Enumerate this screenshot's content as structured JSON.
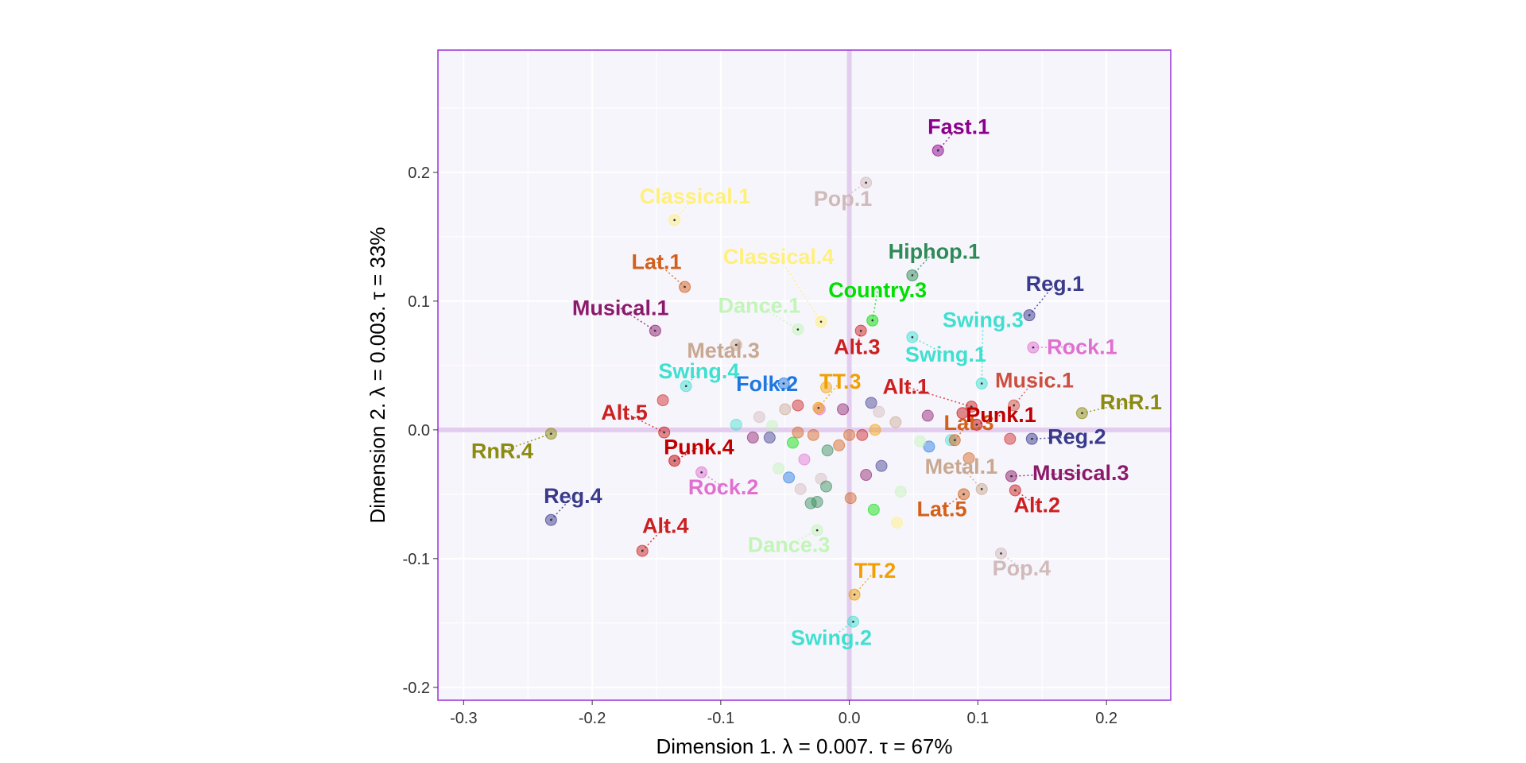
{
  "chart_data": {
    "type": "scatter",
    "title": "",
    "xlabel": "Dimension 1.   λ = 0.007.  τ = 67%",
    "ylabel": "Dimension 2.   λ = 0.003.  τ = 33%",
    "xlim": [
      -0.32,
      0.25
    ],
    "ylim": [
      -0.21,
      0.295
    ],
    "xticks": [
      -0.3,
      -0.2,
      -0.1,
      0.0,
      0.1,
      0.2
    ],
    "xtick_labels": [
      "-0.3",
      "-0.2",
      "-0.1",
      "0.0",
      "0.1",
      "0.2"
    ],
    "yticks": [
      -0.2,
      -0.1,
      0.0,
      0.1,
      0.2
    ],
    "ytick_labels": [
      "-0.2",
      "-0.1",
      "0.0",
      "0.1",
      "0.2"
    ],
    "grid": true,
    "colors": {
      "panel_bg": "#f7f5fc",
      "panel_border": "#9b30d9",
      "zero_lines": "#e3cdee",
      "Alt": "#cc2020",
      "Punk": "#c00000",
      "Reg": "#3a3a8c",
      "RnR": "#8b8b10",
      "Rock": "#e070d0",
      "Musical": "#8b1a6b",
      "Lat": "#d2601a",
      "Classical": "#fff07a",
      "Pop": "#d0baba",
      "Dance": "#c2f5b8",
      "Metal": "#c8a890",
      "Swing": "#40e0d0",
      "TT": "#f0a000",
      "Folk": "#1e78e0",
      "Country": "#00e000",
      "Hiphop": "#2e8b57",
      "Fast": "#8b008b",
      "Music": "#cc5040"
    },
    "points": [
      {
        "name": "Fast.1",
        "x": 0.069,
        "y": 0.217,
        "lx": 0.085,
        "ly": 0.23,
        "group": "Fast"
      },
      {
        "name": "Pop.1",
        "x": 0.013,
        "y": 0.192,
        "lx": -0.005,
        "ly": 0.174,
        "group": "Pop"
      },
      {
        "name": "Classical.1",
        "x": -0.136,
        "y": 0.163,
        "lx": -0.12,
        "ly": 0.176,
        "group": "Classical"
      },
      {
        "name": "Lat.1",
        "x": -0.128,
        "y": 0.111,
        "lx": -0.15,
        "ly": 0.125,
        "group": "Lat"
      },
      {
        "name": "Classical.4",
        "x": -0.022,
        "y": 0.084,
        "lx": -0.055,
        "ly": 0.129,
        "group": "Classical"
      },
      {
        "name": "Hiphop.1",
        "x": 0.049,
        "y": 0.12,
        "lx": 0.066,
        "ly": 0.133,
        "group": "Hiphop"
      },
      {
        "name": "Reg.1",
        "x": 0.14,
        "y": 0.089,
        "lx": 0.16,
        "ly": 0.108,
        "group": "Reg"
      },
      {
        "name": "Country.3",
        "x": 0.018,
        "y": 0.085,
        "lx": 0.022,
        "ly": 0.103,
        "group": "Country"
      },
      {
        "name": "Musical.1",
        "x": -0.151,
        "y": 0.077,
        "lx": -0.178,
        "ly": 0.089,
        "group": "Musical"
      },
      {
        "name": "Dance.1",
        "x": -0.04,
        "y": 0.078,
        "lx": -0.07,
        "ly": 0.091,
        "group": "Dance"
      },
      {
        "name": "Swing.3",
        "x": 0.103,
        "y": 0.036,
        "lx": 0.104,
        "ly": 0.08,
        "group": "Swing"
      },
      {
        "name": "Rock.1",
        "x": 0.143,
        "y": 0.064,
        "lx": 0.181,
        "ly": 0.059,
        "group": "Rock"
      },
      {
        "name": "Metal.3",
        "x": -0.088,
        "y": 0.066,
        "lx": -0.098,
        "ly": 0.056,
        "group": "Metal"
      },
      {
        "name": "Alt.3",
        "x": 0.009,
        "y": 0.077,
        "lx": 0.006,
        "ly": 0.059,
        "group": "Alt"
      },
      {
        "name": "Swing.1",
        "x": 0.049,
        "y": 0.072,
        "lx": 0.075,
        "ly": 0.053,
        "group": "Swing"
      },
      {
        "name": "Swing.4",
        "x": -0.127,
        "y": 0.034,
        "lx": -0.117,
        "ly": 0.04,
        "group": "Swing"
      },
      {
        "name": "Music.1",
        "x": 0.128,
        "y": 0.019,
        "lx": 0.144,
        "ly": 0.033,
        "group": "Music"
      },
      {
        "name": "TT.3",
        "x": -0.024,
        "y": 0.017,
        "lx": -0.007,
        "ly": 0.032,
        "group": "TT"
      },
      {
        "name": "Folk.2",
        "x": -0.051,
        "y": 0.036,
        "lx": -0.064,
        "ly": 0.03,
        "group": "Folk"
      },
      {
        "name": "Alt.1",
        "x": 0.095,
        "y": 0.018,
        "lx": 0.044,
        "ly": 0.028,
        "group": "Alt"
      },
      {
        "name": "RnR.1",
        "x": 0.181,
        "y": 0.013,
        "lx": 0.219,
        "ly": 0.016,
        "group": "RnR"
      },
      {
        "name": "Alt.5",
        "x": -0.144,
        "y": -0.002,
        "lx": -0.175,
        "ly": 0.008,
        "group": "Alt"
      },
      {
        "name": "Lat.3",
        "x": 0.082,
        "y": -0.008,
        "lx": 0.093,
        "ly": 0.0,
        "group": "Lat"
      },
      {
        "name": "Punk.1",
        "x": 0.099,
        "y": 0.004,
        "lx": 0.118,
        "ly": 0.006,
        "group": "Punk"
      },
      {
        "name": "Reg.2",
        "x": 0.142,
        "y": -0.007,
        "lx": 0.177,
        "ly": -0.011,
        "group": "Reg"
      },
      {
        "name": "RnR.4",
        "x": -0.232,
        "y": -0.003,
        "lx": -0.27,
        "ly": -0.022,
        "group": "RnR"
      },
      {
        "name": "Punk.4",
        "x": -0.136,
        "y": -0.024,
        "lx": -0.117,
        "ly": -0.019,
        "group": "Punk"
      },
      {
        "name": "Metal.1",
        "x": 0.103,
        "y": -0.046,
        "lx": 0.087,
        "ly": -0.034,
        "group": "Metal"
      },
      {
        "name": "Musical.3",
        "x": 0.126,
        "y": -0.036,
        "lx": 0.18,
        "ly": -0.039,
        "group": "Musical"
      },
      {
        "name": "Rock.2",
        "x": -0.115,
        "y": -0.033,
        "lx": -0.098,
        "ly": -0.05,
        "group": "Rock"
      },
      {
        "name": "Reg.4",
        "x": -0.232,
        "y": -0.07,
        "lx": -0.215,
        "ly": -0.057,
        "group": "Reg"
      },
      {
        "name": "Alt.2",
        "x": 0.129,
        "y": -0.047,
        "lx": 0.146,
        "ly": -0.064,
        "group": "Alt"
      },
      {
        "name": "Lat.5",
        "x": 0.089,
        "y": -0.05,
        "lx": 0.072,
        "ly": -0.067,
        "group": "Lat"
      },
      {
        "name": "Alt.4",
        "x": -0.161,
        "y": -0.094,
        "lx": -0.143,
        "ly": -0.08,
        "group": "Alt"
      },
      {
        "name": "Dance.3",
        "x": -0.025,
        "y": -0.078,
        "lx": -0.047,
        "ly": -0.095,
        "group": "Dance"
      },
      {
        "name": "Pop.4",
        "x": 0.118,
        "y": -0.096,
        "lx": 0.134,
        "ly": -0.113,
        "group": "Pop"
      },
      {
        "name": "TT.2",
        "x": 0.004,
        "y": -0.128,
        "lx": 0.02,
        "ly": -0.115,
        "group": "TT"
      },
      {
        "name": "Swing.2",
        "x": 0.003,
        "y": -0.149,
        "lx": -0.014,
        "ly": -0.167,
        "group": "Swing"
      }
    ],
    "unlabeled_points": [
      [
        -0.145,
        0.023,
        "Alt"
      ],
      [
        -0.088,
        0.004,
        "Swing"
      ],
      [
        -0.07,
        0.01,
        "Pop"
      ],
      [
        -0.06,
        0.003,
        "Dance"
      ],
      [
        -0.05,
        0.016,
        "Metal"
      ],
      [
        -0.04,
        0.019,
        "Alt"
      ],
      [
        -0.023,
        0.016,
        "Rock"
      ],
      [
        -0.005,
        0.016,
        "Musical"
      ],
      [
        0.017,
        0.021,
        "Reg"
      ],
      [
        0.023,
        0.014,
        "Pop"
      ],
      [
        0.061,
        0.011,
        "Musical"
      ],
      [
        0.088,
        0.013,
        "Punk"
      ],
      [
        -0.075,
        -0.006,
        "Musical"
      ],
      [
        -0.062,
        -0.006,
        "Reg"
      ],
      [
        -0.028,
        -0.004,
        "Lat"
      ],
      [
        0.01,
        -0.004,
        "Alt"
      ],
      [
        0.02,
        0.0,
        "TT"
      ],
      [
        0.036,
        0.006,
        "Metal"
      ],
      [
        0.062,
        -0.013,
        "Folk"
      ],
      [
        0.079,
        -0.008,
        "Swing"
      ],
      [
        0.125,
        -0.007,
        "Alt"
      ],
      [
        -0.055,
        -0.03,
        "Dance"
      ],
      [
        -0.047,
        -0.037,
        "Folk"
      ],
      [
        -0.035,
        -0.023,
        "Rock"
      ],
      [
        -0.017,
        -0.016,
        "Hiphop"
      ],
      [
        -0.022,
        -0.038,
        "Pop"
      ],
      [
        -0.018,
        -0.044,
        "Hiphop"
      ],
      [
        0.025,
        -0.028,
        "Reg"
      ],
      [
        -0.038,
        -0.046,
        "Pop"
      ],
      [
        -0.025,
        -0.056,
        "Hiphop"
      ],
      [
        -0.03,
        -0.057,
        "Hiphop"
      ],
      [
        0.001,
        -0.053,
        "Lat"
      ],
      [
        0.019,
        -0.062,
        "Country"
      ],
      [
        0.04,
        -0.048,
        "Dance"
      ],
      [
        0.037,
        -0.072,
        "Classical"
      ],
      [
        0.093,
        -0.022,
        "Lat"
      ],
      [
        0.013,
        -0.035,
        "Musical"
      ],
      [
        -0.04,
        -0.002,
        "Lat"
      ],
      [
        -0.044,
        -0.01,
        "Country"
      ],
      [
        0.055,
        -0.009,
        "Dance"
      ],
      [
        -0.018,
        0.033,
        "TT"
      ],
      [
        0.0,
        -0.004,
        "Lat"
      ],
      [
        -0.008,
        -0.012,
        "Lat"
      ]
    ]
  }
}
